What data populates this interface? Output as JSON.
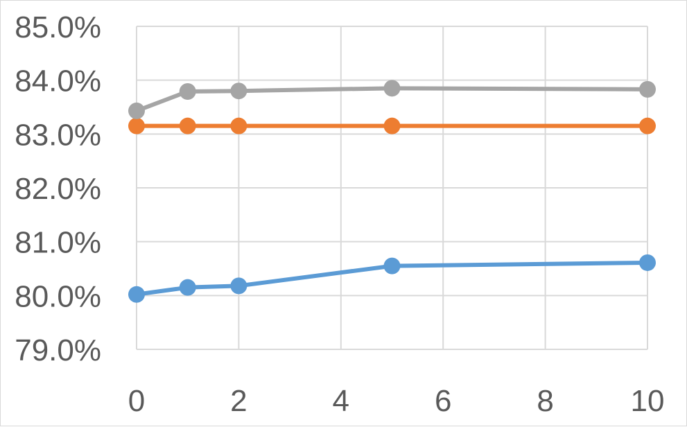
{
  "chart_data": {
    "type": "line",
    "title": "",
    "xlabel": "",
    "ylabel": "",
    "x": [
      0,
      1,
      2,
      5,
      10
    ],
    "xlim": [
      0,
      10
    ],
    "ylim": [
      79.0,
      85.0
    ],
    "x_ticks": [
      0,
      2,
      4,
      6,
      8,
      10
    ],
    "x_tick_labels": [
      "0",
      "2",
      "4",
      "6",
      "8",
      "10"
    ],
    "y_ticks": [
      79,
      80,
      81,
      82,
      83,
      84,
      85
    ],
    "y_tick_labels": [
      "79.0%",
      "80.0%",
      "81.0%",
      "82.0%",
      "83.0%",
      "84.0%",
      "85.0%"
    ],
    "grid": "on",
    "legend": "none",
    "series": [
      {
        "color": "#5b9bd5",
        "values": [
          80.02,
          80.15,
          80.18,
          80.55,
          80.61
        ]
      },
      {
        "color": "#ed7d31",
        "values": [
          83.15,
          83.15,
          83.15,
          83.15,
          83.15
        ]
      },
      {
        "color": "#a5a5a5",
        "values": [
          83.43,
          83.79,
          83.8,
          83.85,
          83.83
        ]
      }
    ]
  }
}
